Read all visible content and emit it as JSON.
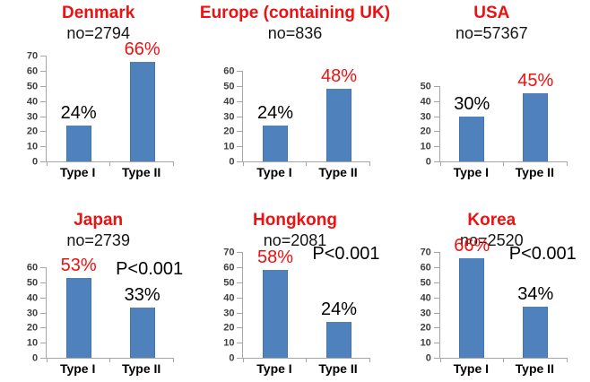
{
  "figure": {
    "description": "Six bar charts comparing Type I and Type II proportions by region",
    "rows": 2,
    "columns": 3
  },
  "colors": {
    "accent_red": "#EE1111",
    "bar_fill": "#4F81BD",
    "bar_border": "#4175AD",
    "axis_line": "#A6A6A6",
    "tick_text": "#3F3F3F",
    "text_black": "#000000"
  },
  "chart_data": [
    {
      "type": "bar",
      "title": "Denmark",
      "subtitle": "no=2794",
      "categories": [
        "Type I",
        "Type II"
      ],
      "values": [
        24,
        66
      ],
      "labels": [
        "24%",
        "66%"
      ],
      "label_colors": [
        "black",
        "red"
      ],
      "ylim": [
        0,
        70
      ],
      "yticks": [
        0,
        10,
        20,
        30,
        40,
        50,
        60,
        70
      ],
      "pvalue": null,
      "grid": false,
      "legend": null
    },
    {
      "type": "bar",
      "title": "Europe (containing UK)",
      "subtitle": "no=836",
      "categories": [
        "Type I",
        "Type II"
      ],
      "values": [
        24,
        48
      ],
      "labels": [
        "24%",
        "48%"
      ],
      "label_colors": [
        "black",
        "red"
      ],
      "ylim": [
        0,
        60
      ],
      "yticks": [
        0,
        10,
        20,
        30,
        40,
        50,
        60
      ],
      "pvalue": null,
      "grid": false,
      "legend": null
    },
    {
      "type": "bar",
      "title": "USA",
      "subtitle": "no=57367",
      "categories": [
        "Type I",
        "Type II"
      ],
      "values": [
        30,
        45
      ],
      "labels": [
        "30%",
        "45%"
      ],
      "label_colors": [
        "black",
        "red"
      ],
      "ylim": [
        0,
        50
      ],
      "yticks": [
        0,
        10,
        20,
        30,
        40,
        50
      ],
      "pvalue": null,
      "grid": false,
      "legend": null
    },
    {
      "type": "bar",
      "title": "Japan",
      "subtitle": "no=2739",
      "categories": [
        "Type I",
        "Type II"
      ],
      "values": [
        53,
        33
      ],
      "labels": [
        "53%",
        "33%"
      ],
      "label_colors": [
        "red",
        "black"
      ],
      "ylim": [
        0,
        60
      ],
      "yticks": [
        0,
        10,
        20,
        30,
        40,
        50,
        60
      ],
      "pvalue": "P<0.001",
      "grid": false,
      "legend": null
    },
    {
      "type": "bar",
      "title": "Hongkong",
      "subtitle": "no=2081",
      "categories": [
        "Type I",
        "Type II"
      ],
      "values": [
        58,
        24
      ],
      "labels": [
        "58%",
        "24%"
      ],
      "label_colors": [
        "red",
        "black"
      ],
      "ylim": [
        0,
        70
      ],
      "yticks": [
        0,
        10,
        20,
        30,
        40,
        50,
        60,
        70
      ],
      "pvalue": "P<0.001",
      "grid": false,
      "legend": null
    },
    {
      "type": "bar",
      "title": "Korea",
      "subtitle": "no=2520",
      "categories": [
        "Type I",
        "Type II"
      ],
      "values": [
        66,
        34
      ],
      "labels": [
        "66%",
        "34%"
      ],
      "label_colors": [
        "red",
        "black"
      ],
      "ylim": [
        0,
        70
      ],
      "yticks": [
        0,
        10,
        20,
        30,
        40,
        50,
        60,
        70
      ],
      "pvalue": "P<0.001",
      "grid": false,
      "legend": null
    }
  ]
}
